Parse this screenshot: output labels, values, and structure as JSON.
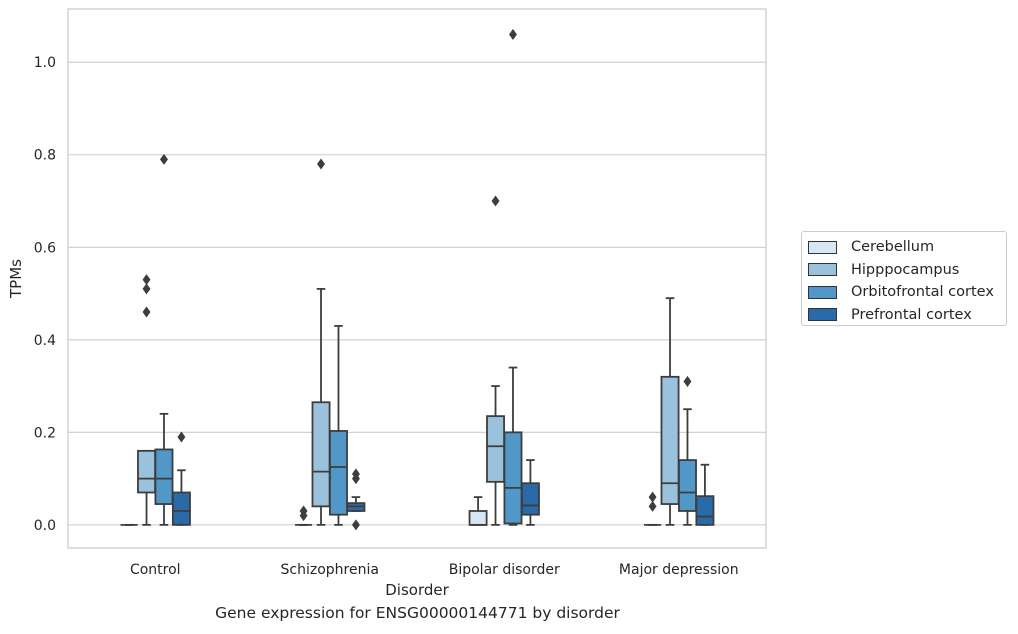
{
  "caption": "Gene expression for ENSG00000144771 by disorder",
  "chart_data": {
    "type": "box",
    "xlabel": "Disorder",
    "ylabel": "TPMs",
    "ylim": [
      -0.05,
      1.115
    ],
    "yticks": [
      "0.0",
      "0.2",
      "0.4",
      "0.6",
      "0.8",
      "1.0"
    ],
    "grid": true,
    "legend_position": "right",
    "categories": [
      "Control",
      "Schizophrenia",
      "Bipolar disorder",
      "Major depression"
    ],
    "series": [
      {
        "name": "Cerebellum",
        "color": "#d7e6f3",
        "boxes": [
          {
            "whislo": 0.0,
            "q1": 0.0,
            "med": 0.0,
            "q3": 0.0,
            "whishi": 0.0,
            "fliers": []
          },
          {
            "whislo": 0.0,
            "q1": 0.0,
            "med": 0.0,
            "q3": 0.0,
            "whishi": 0.0,
            "fliers": [
              0.02,
              0.03
            ]
          },
          {
            "whislo": 0.0,
            "q1": 0.0,
            "med": 0.0,
            "q3": 0.03,
            "whishi": 0.06,
            "fliers": []
          },
          {
            "whislo": 0.0,
            "q1": 0.0,
            "med": 0.0,
            "q3": 0.0,
            "whishi": 0.0,
            "fliers": [
              0.04,
              0.06
            ]
          }
        ]
      },
      {
        "name": "Hipppocampus",
        "color": "#9ac2dc",
        "boxes": [
          {
            "whislo": 0.0,
            "q1": 0.07,
            "med": 0.1,
            "q3": 0.16,
            "whishi": 0.16,
            "fliers": [
              0.46,
              0.51,
              0.53
            ]
          },
          {
            "whislo": 0.0,
            "q1": 0.04,
            "med": 0.115,
            "q3": 0.265,
            "whishi": 0.51,
            "fliers": [
              0.78
            ]
          },
          {
            "whislo": 0.0,
            "q1": 0.093,
            "med": 0.17,
            "q3": 0.235,
            "whishi": 0.3,
            "fliers": [
              0.7
            ]
          },
          {
            "whislo": 0.0,
            "q1": 0.045,
            "med": 0.09,
            "q3": 0.32,
            "whishi": 0.49,
            "fliers": []
          }
        ]
      },
      {
        "name": "Orbitofrontal cortex",
        "color": "#5197c7",
        "boxes": [
          {
            "whislo": 0.0,
            "q1": 0.045,
            "med": 0.1,
            "q3": 0.163,
            "whishi": 0.24,
            "fliers": [
              0.79
            ]
          },
          {
            "whislo": 0.0,
            "q1": 0.022,
            "med": 0.125,
            "q3": 0.203,
            "whishi": 0.43,
            "fliers": []
          },
          {
            "whislo": 0.0,
            "q1": 0.003,
            "med": 0.08,
            "q3": 0.2,
            "whishi": 0.34,
            "fliers": [
              1.06
            ]
          },
          {
            "whislo": 0.0,
            "q1": 0.03,
            "med": 0.07,
            "q3": 0.14,
            "whishi": 0.25,
            "fliers": [
              0.31
            ]
          }
        ]
      },
      {
        "name": "Prefrontal cortex",
        "color": "#2a6aa8",
        "boxes": [
          {
            "whislo": 0.0,
            "q1": 0.0,
            "med": 0.03,
            "q3": 0.07,
            "whishi": 0.118,
            "fliers": [
              0.19
            ]
          },
          {
            "whislo": 0.03,
            "q1": 0.03,
            "med": 0.04,
            "q3": 0.047,
            "whishi": 0.06,
            "fliers": [
              0.0,
              0.1,
              0.11
            ]
          },
          {
            "whislo": 0.0,
            "q1": 0.022,
            "med": 0.042,
            "q3": 0.09,
            "whishi": 0.14,
            "fliers": []
          },
          {
            "whislo": 0.0,
            "q1": 0.0,
            "med": 0.018,
            "q3": 0.062,
            "whishi": 0.13,
            "fliers": []
          }
        ]
      }
    ]
  }
}
